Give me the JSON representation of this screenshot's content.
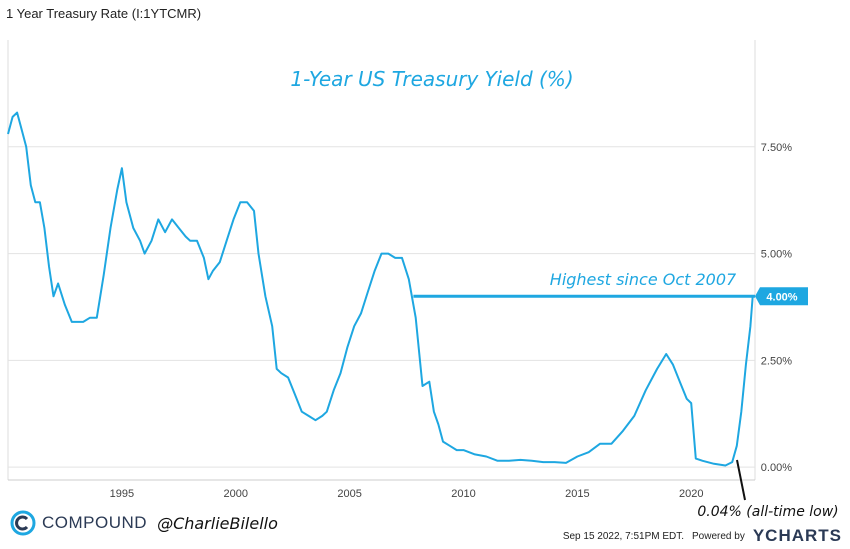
{
  "window_title": "1 Year Treasury Rate (I:1YTCMR)",
  "colors": {
    "line": "#1ea7e1",
    "grid": "#e3e3e3",
    "badge": "#1ea7e1",
    "brand": "#2b3a55"
  },
  "chart_data": {
    "type": "line",
    "title": "1-Year US Treasury Yield (%)",
    "x_range": [
      1990.0,
      2022.8
    ],
    "ylim": [
      -0.3,
      10.0
    ],
    "y_ticks": [
      {
        "value": 0,
        "label": "0.00%"
      },
      {
        "value": 2.5,
        "label": "2.50%"
      },
      {
        "value": 5,
        "label": "5.00%"
      },
      {
        "value": 7.5,
        "label": "7.50%"
      }
    ],
    "x_ticks": [
      {
        "value": 1995,
        "label": "1995"
      },
      {
        "value": 2000,
        "label": "2000"
      },
      {
        "value": 2005,
        "label": "2005"
      },
      {
        "value": 2010,
        "label": "2010"
      },
      {
        "value": 2015,
        "label": "2015"
      },
      {
        "value": 2020,
        "label": "2020"
      }
    ],
    "gridlines": "horizontal",
    "series": [
      {
        "x": [
          1990.0,
          1990.2,
          1990.4,
          1990.6,
          1990.8,
          1991.0,
          1991.2,
          1991.4,
          1991.6,
          1991.8,
          1992.0,
          1992.2,
          1992.5,
          1992.8,
          1993.0,
          1993.3,
          1993.6,
          1993.9,
          1994.2,
          1994.5,
          1994.8,
          1995.0,
          1995.2,
          1995.5,
          1995.8,
          1996.0,
          1996.3,
          1996.6,
          1996.9,
          1997.2,
          1997.5,
          1997.8,
          1998.0,
          1998.3,
          1998.6,
          1998.8,
          1999.0,
          1999.3,
          1999.6,
          1999.9,
          2000.2,
          2000.5,
          2000.8,
          2001.0,
          2001.3,
          2001.6,
          2001.8,
          2002.0,
          2002.3,
          2002.6,
          2002.9,
          2003.2,
          2003.5,
          2003.8,
          2004.0,
          2004.3,
          2004.6,
          2004.9,
          2005.2,
          2005.5,
          2005.8,
          2006.1,
          2006.4,
          2006.7,
          2007.0,
          2007.3,
          2007.6,
          2007.9,
          2008.2,
          2008.5,
          2008.7,
          2008.9,
          2009.1,
          2009.4,
          2009.7,
          2010.0,
          2010.5,
          2011.0,
          2011.5,
          2012.0,
          2012.5,
          2013.0,
          2013.5,
          2014.0,
          2014.5,
          2015.0,
          2015.5,
          2016.0,
          2016.5,
          2017.0,
          2017.5,
          2018.0,
          2018.5,
          2018.9,
          2019.2,
          2019.5,
          2019.8,
          2020.0,
          2020.2,
          2020.5,
          2021.0,
          2021.5,
          2021.8,
          2022.0,
          2022.2,
          2022.4,
          2022.6,
          2022.7
        ],
        "values": [
          7.8,
          8.2,
          8.3,
          7.9,
          7.5,
          6.6,
          6.2,
          6.2,
          5.6,
          4.7,
          4.0,
          4.3,
          3.8,
          3.4,
          3.4,
          3.4,
          3.5,
          3.5,
          4.5,
          5.6,
          6.5,
          7.0,
          6.2,
          5.6,
          5.3,
          5.0,
          5.3,
          5.8,
          5.5,
          5.8,
          5.6,
          5.4,
          5.3,
          5.3,
          4.9,
          4.4,
          4.6,
          4.8,
          5.3,
          5.8,
          6.2,
          6.2,
          6.0,
          5.0,
          4.0,
          3.3,
          2.3,
          2.2,
          2.1,
          1.7,
          1.3,
          1.2,
          1.1,
          1.2,
          1.3,
          1.8,
          2.2,
          2.8,
          3.3,
          3.6,
          4.1,
          4.6,
          5.0,
          5.0,
          4.9,
          4.9,
          4.4,
          3.5,
          1.9,
          2.0,
          1.3,
          1.0,
          0.6,
          0.5,
          0.4,
          0.4,
          0.3,
          0.25,
          0.15,
          0.15,
          0.17,
          0.15,
          0.12,
          0.12,
          0.1,
          0.25,
          0.35,
          0.55,
          0.55,
          0.85,
          1.2,
          1.8,
          2.3,
          2.65,
          2.4,
          2.0,
          1.6,
          1.5,
          0.2,
          0.15,
          0.08,
          0.04,
          0.12,
          0.5,
          1.3,
          2.4,
          3.3,
          4.0
        ]
      }
    ],
    "last_value_label": "4.00%",
    "reference_line": {
      "value": 4.0,
      "x_start": 2007.8
    },
    "annotations": [
      {
        "text": "Highest since Oct 2007"
      },
      {
        "text": "0.04% (all-time low)"
      }
    ]
  },
  "footer": {
    "brand": "COMPOUND",
    "handle": "@CharlieBilello",
    "timestamp": "Sep 15 2022, 7:51PM EDT.",
    "powered_by": "Powered by",
    "ycharts": "YCHARTS"
  }
}
